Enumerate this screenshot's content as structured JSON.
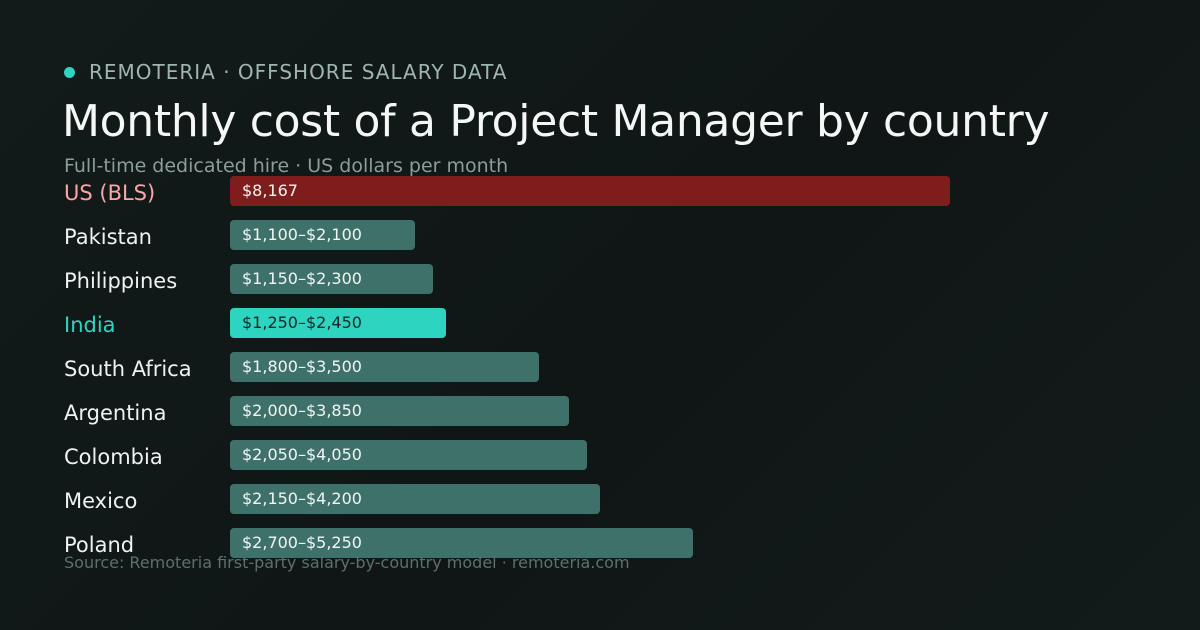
{
  "header": {
    "brand": "REMOTERIA · OFFSHORE SALARY DATA",
    "accent_color": "#2dd4bf"
  },
  "chart_data": {
    "type": "bar",
    "title": "Monthly cost of a Project Manager by country",
    "subtitle": "Full-time dedicated hire · US dollars per month",
    "orientation": "horizontal",
    "unit": "USD per month",
    "categories": [
      "US (BLS)",
      "Pakistan",
      "Philippines",
      "India",
      "South Africa",
      "Argentina",
      "Colombia",
      "Mexico",
      "Poland"
    ],
    "value_labels": [
      "$8,167",
      "$1,100–$2,100",
      "$1,150–$2,300",
      "$1,250–$2,450",
      "$1,800–$3,500",
      "$2,000–$3,850",
      "$2,050–$4,050",
      "$2,150–$4,200",
      "$2,700–$5,250"
    ],
    "low": [
      8167,
      1100,
      1150,
      1250,
      1800,
      2000,
      2050,
      2150,
      2700
    ],
    "high": [
      8167,
      2100,
      2300,
      2450,
      3500,
      3850,
      4050,
      4200,
      5250
    ],
    "bar_colors": [
      "#7f1d1d",
      "#3f716b",
      "#3f716b",
      "#2dd4bf",
      "#3f716b",
      "#3f716b",
      "#3f716b",
      "#3f716b",
      "#3f716b"
    ],
    "label_colors": [
      "#fca5a5",
      "#eef2f1",
      "#eef2f1",
      "#2dd4bf",
      "#eef2f1",
      "#eef2f1",
      "#eef2f1",
      "#eef2f1",
      "#eef2f1"
    ],
    "value_text_colors": [
      "#f1f5f4",
      "#f1f5f4",
      "#f1f5f4",
      "#0f2a27",
      "#f1f5f4",
      "#f1f5f4",
      "#f1f5f4",
      "#f1f5f4",
      "#f1f5f4"
    ],
    "xlim": [
      0,
      8167
    ],
    "grid": false,
    "legend": "none"
  },
  "footer": {
    "source": "Source: Remoteria first-party salary-by-country model · remoteria.com"
  }
}
